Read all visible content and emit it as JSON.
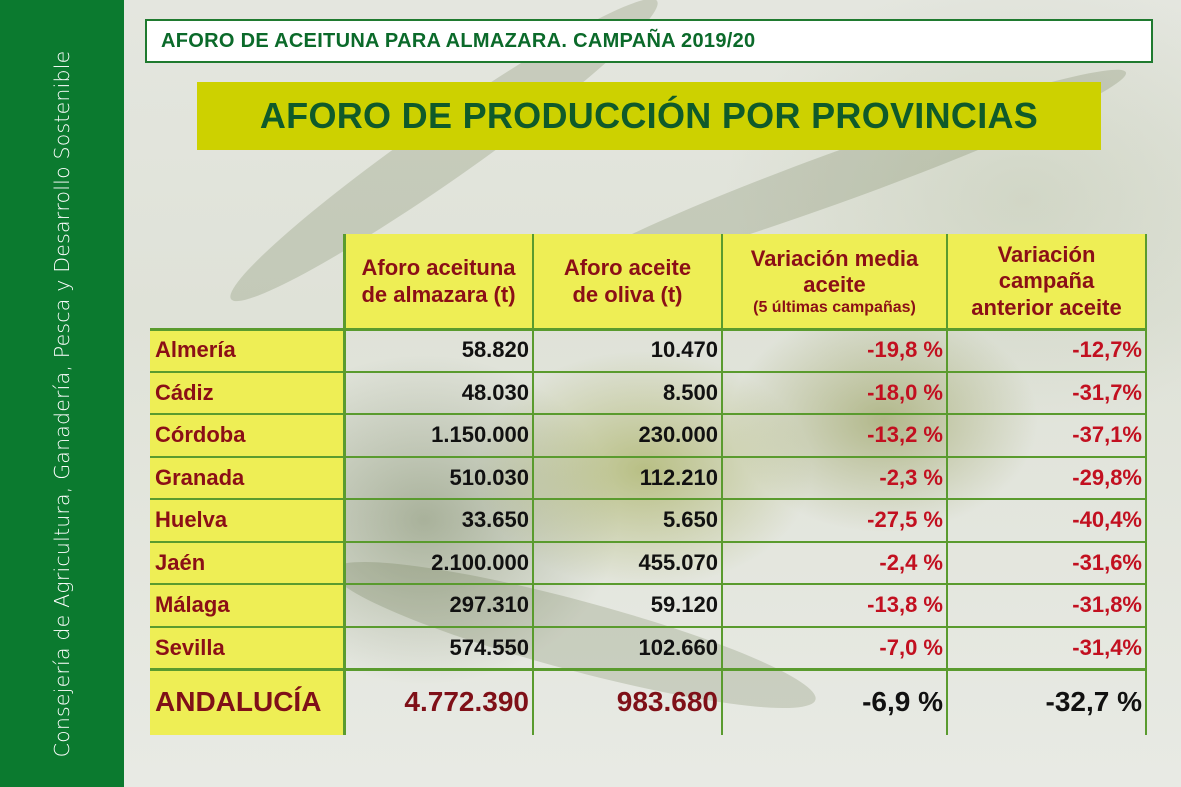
{
  "sidebar": {
    "text": "Consejería de Agricultura, Ganadería, Pesca y Desarrollo Sostenible"
  },
  "header": {
    "title": "AFORO DE ACEITUNA PARA ALMAZARA. CAMPAÑA 2019/20",
    "main_title": "AFORO DE PRODUCCIÓN POR PROVINCIAS"
  },
  "table": {
    "columns": [
      {
        "lines": [
          "Aforo aceituna",
          "de almazara (t)"
        ]
      },
      {
        "lines": [
          "Aforo aceite",
          "de oliva (t)"
        ]
      },
      {
        "lines": [
          "Variación media",
          "aceite"
        ],
        "note": "(5 últimas campañas)"
      },
      {
        "lines": [
          "Variación",
          "campaña",
          "anterior aceite"
        ]
      }
    ],
    "rows": [
      {
        "name": "Almería",
        "aceituna": "58.820",
        "aceite": "10.470",
        "var_media": "-19,8 %",
        "var_anterior": "-12,7%"
      },
      {
        "name": "Cádiz",
        "aceituna": "48.030",
        "aceite": "8.500",
        "var_media": "-18,0 %",
        "var_anterior": "-31,7%"
      },
      {
        "name": "Córdoba",
        "aceituna": "1.150.000",
        "aceite": "230.000",
        "var_media": "-13,2 %",
        "var_anterior": "-37,1%"
      },
      {
        "name": "Granada",
        "aceituna": "510.030",
        "aceite": "112.210",
        "var_media": "-2,3 %",
        "var_anterior": "-29,8%"
      },
      {
        "name": "Huelva",
        "aceituna": "33.650",
        "aceite": "5.650",
        "var_media": "-27,5 %",
        "var_anterior": "-40,4%"
      },
      {
        "name": "Jaén",
        "aceituna": "2.100.000",
        "aceite": "455.070",
        "var_media": "-2,4 %",
        "var_anterior": "-31,6%"
      },
      {
        "name": "Málaga",
        "aceituna": "297.310",
        "aceite": "59.120",
        "var_media": "-13,8 %",
        "var_anterior": "-31,8%"
      },
      {
        "name": "Sevilla",
        "aceituna": "574.550",
        "aceite": "102.660",
        "var_media": "-7,0 %",
        "var_anterior": "-31,4%"
      }
    ],
    "total": {
      "name": "ANDALUCÍA",
      "aceituna": "4.772.390",
      "aceite": "983.680",
      "var_media": "-6,9 %",
      "var_anterior": "-32,7 %"
    }
  },
  "colors": {
    "sidebar_green": "#0b7a2f",
    "header_yellow": "#cdd100",
    "cell_yellow": "#eeee55",
    "dark_red": "#8b0f16",
    "red": "#c21020"
  }
}
